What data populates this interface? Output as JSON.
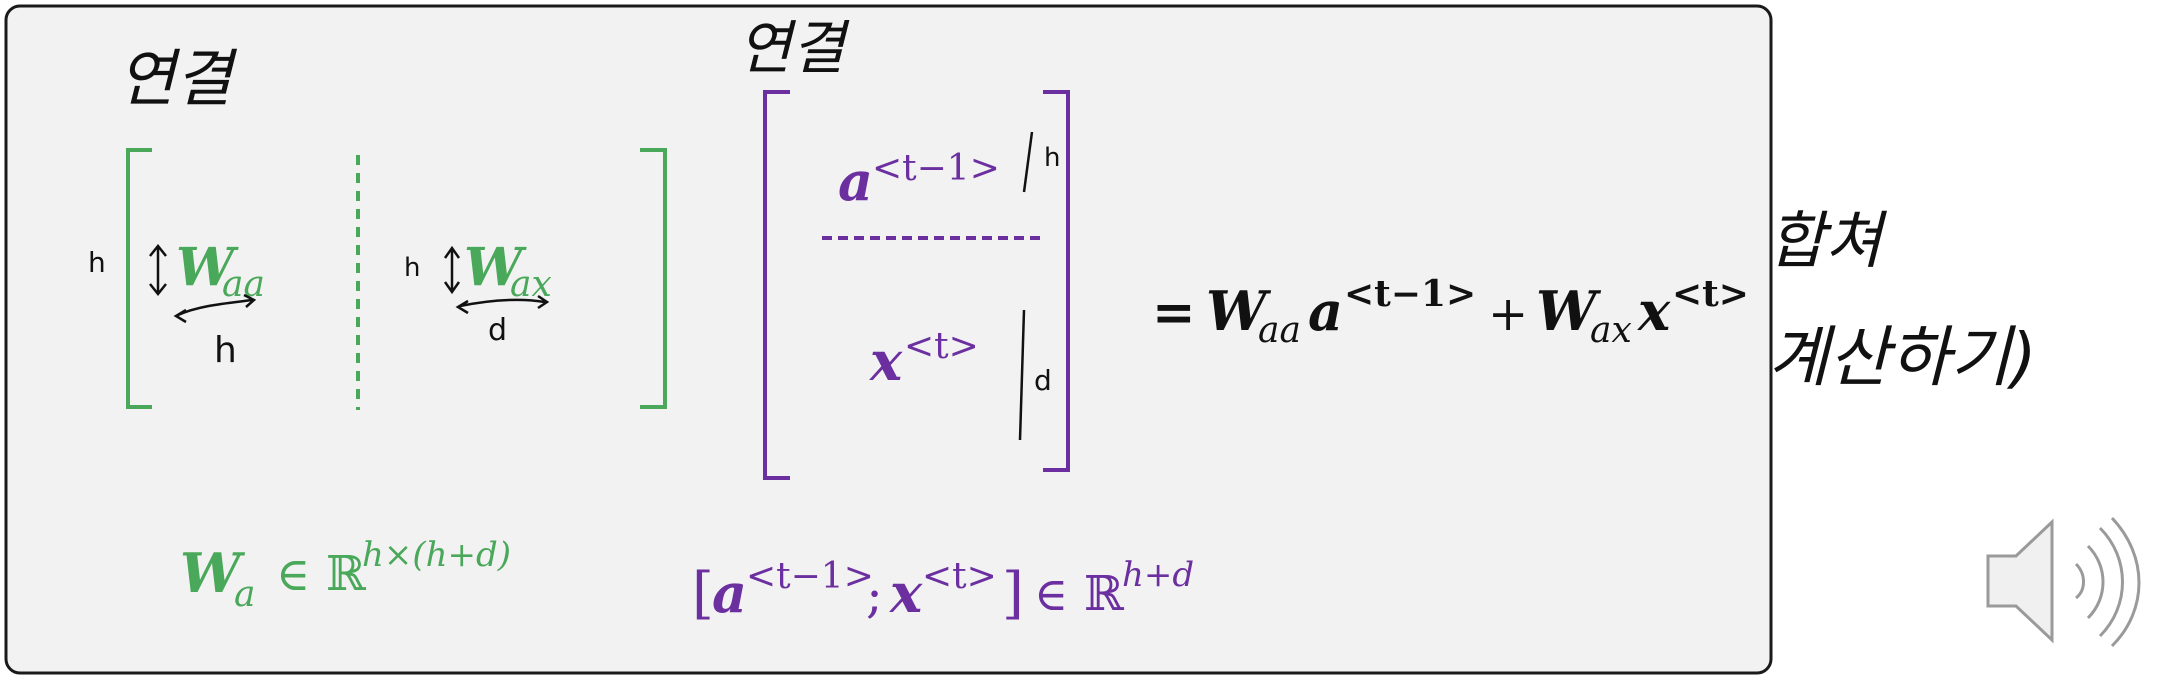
{
  "colors": {
    "green": "#4aa85a",
    "purple": "#6b2fa0",
    "ink": "#111111",
    "panel_bg": "#f2f2f2",
    "panel_border": "#1a1a1a",
    "speaker": "#9a9a9a"
  },
  "handwriting": {
    "left_note": "연결",
    "middle_note": "연결",
    "right_note_line1": "합쳐",
    "right_note_line2": "계산하기)",
    "waa_height_mark": "h",
    "waa_width_mark": "h",
    "wax_height_mark": "h",
    "wax_width_mark": "d",
    "a_size_mark": "h",
    "x_size_mark": "d"
  },
  "green_matrix": {
    "left_block": {
      "symbol": "W",
      "subscript": "aa"
    },
    "right_block": {
      "symbol": "W",
      "subscript": "ax"
    }
  },
  "purple_vector": {
    "top_entry": {
      "symbol": "a",
      "superscript": "<t−1>"
    },
    "bottom_entry": {
      "symbol": "x",
      "superscript": "<t>"
    }
  },
  "equation": {
    "equals": "=",
    "term1_W": "W",
    "term1_W_sub": "aa",
    "term1_a": "a",
    "term1_a_sup": "<t−1>",
    "plus": "+",
    "term2_W": "W",
    "term2_W_sub": "ax",
    "term2_x": "x",
    "term2_x_sup": "<t>"
  },
  "green_caption": {
    "symbol": "W",
    "subscript": "a",
    "relation": "∈",
    "set": "ℝ",
    "exponent": "h×(h+d)"
  },
  "purple_caption": {
    "open": "[",
    "a": "a",
    "a_sup": "<t−1>",
    "sep": ";",
    "x": "x",
    "x_sup": "<t>",
    "close": "]",
    "relation": "∈",
    "set": "ℝ",
    "exponent": "h+d"
  },
  "speaker_icon": "speaker-volume-icon"
}
